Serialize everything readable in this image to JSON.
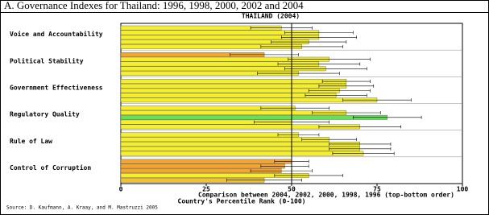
{
  "chart_data": {
    "type": "hbar_error",
    "title": "A. Governance Indexes for Thailand: 1996, 1998, 2000, 2002 and 2004",
    "subtitle": "THAILAND (2004)",
    "x_label": "Comparison between 2004, 2002, 2000, 1998, 1996 (top-bottom order)",
    "x_label_2": "Country's Percentile Rank (0-100)",
    "source": "Source: D. Kaufmann, A. Kraay, and M. Mastruzzi 2005",
    "xlim": [
      0,
      100
    ],
    "xticks": [
      0,
      25,
      50,
      75,
      100
    ],
    "reference_line": 50,
    "groups": [
      {
        "label": "Voice and Accountability",
        "values": [
          47,
          58,
          58,
          55,
          53
        ],
        "errors": [
          9,
          10,
          11,
          11,
          12
        ],
        "colors": [
          "#f4ee2c",
          "#f4ee2c",
          "#f4ee2c",
          "#f4ee2c",
          "#f4ee2c"
        ]
      },
      {
        "label": "Political Stability",
        "values": [
          42,
          61,
          58,
          60,
          52
        ],
        "errors": [
          10,
          12,
          12,
          12,
          12
        ],
        "colors": [
          "#f2a630",
          "#f4ee2c",
          "#f4ee2c",
          "#f4ee2c",
          "#f4ee2c"
        ]
      },
      {
        "label": "Government Effectiveness",
        "values": [
          66,
          66,
          64,
          63,
          75
        ],
        "errors": [
          7,
          8,
          9,
          9,
          10
        ],
        "colors": [
          "#f4ee2c",
          "#f4ee2c",
          "#f4ee2c",
          "#f4ee2c",
          "#f4ee2c"
        ]
      },
      {
        "label": "Regulatory Quality",
        "values": [
          51,
          66,
          78,
          50,
          70
        ],
        "errors": [
          10,
          10,
          10,
          11,
          12
        ],
        "colors": [
          "#f4ee2c",
          "#f4ee2c",
          "#66e05a",
          "#f4ee2c",
          "#f4ee2c"
        ]
      },
      {
        "label": "Rule of Law",
        "values": [
          52,
          61,
          70,
          70,
          71
        ],
        "errors": [
          6,
          8,
          9,
          9,
          9
        ],
        "colors": [
          "#f4ee2c",
          "#f4ee2c",
          "#f4ee2c",
          "#f4ee2c",
          "#f4ee2c"
        ]
      },
      {
        "label": "Control of Corruption",
        "values": [
          50,
          48,
          47,
          55,
          42
        ],
        "errors": [
          5,
          7,
          9,
          10,
          11
        ],
        "colors": [
          "#f2a630",
          "#f2a630",
          "#f2a630",
          "#f4ee2c",
          "#f2c230"
        ]
      }
    ]
  }
}
